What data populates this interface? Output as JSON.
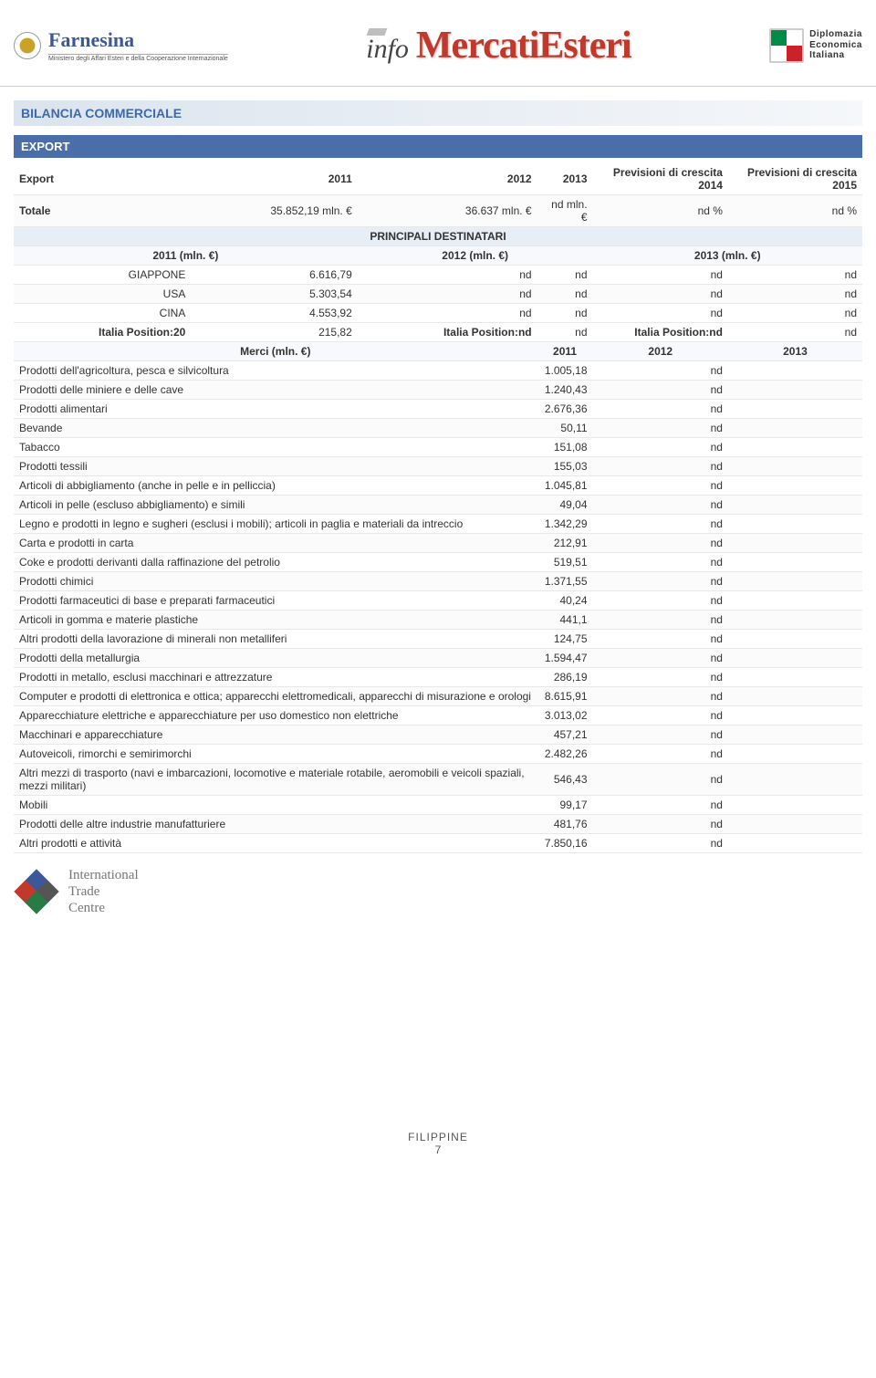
{
  "header": {
    "farnesina": "Farnesina",
    "farnesina_sub": "Ministero degli Affari Esteri e della Cooperazione Internazionale",
    "info": "info",
    "mercati": "MercatiEsteri",
    "dei_l1": "Diplomazia",
    "dei_l2": "Economica",
    "dei_l3": "Italiana"
  },
  "section_title": "BILANCIA COMMERCIALE",
  "sub_title": "EXPORT",
  "export_header": {
    "c0": "Export",
    "c1": "2011",
    "c2": "2012",
    "c3": "2013",
    "c4": "Previsioni di crescita 2014",
    "c5": "Previsioni di crescita 2015"
  },
  "export_row": {
    "c0": "Totale",
    "c1": "35.852,19 mln. €",
    "c2": "36.637 mln. €",
    "c3": "nd mln. €",
    "c4": "nd %",
    "c5": "nd %"
  },
  "dest_title": "PRINCIPALI DESTINATARI",
  "dest_cols": {
    "c0": "2011 (mln. €)",
    "c1": "2012 (mln. €)",
    "c2": "2013 (mln. €)"
  },
  "dest_rows": [
    {
      "name": "GIAPPONE",
      "v11": "6.616,79",
      "p12": "nd",
      "v12": "nd",
      "p13": "nd",
      "v13": "nd"
    },
    {
      "name": "USA",
      "v11": "5.303,54",
      "p12": "nd",
      "v12": "nd",
      "p13": "nd",
      "v13": "nd"
    },
    {
      "name": "CINA",
      "v11": "4.553,92",
      "p12": "nd",
      "v12": "nd",
      "p13": "nd",
      "v13": "nd"
    }
  ],
  "italia_row": {
    "p11": "Italia Position:20",
    "v11": "215,82",
    "p12": "Italia Position:nd",
    "v12": "nd",
    "p13": "Italia Position:nd",
    "v13": "nd"
  },
  "merci_header": {
    "label": "Merci (mln. €)",
    "c1": "2011",
    "c2": "2012",
    "c3": "2013"
  },
  "merci_rows": [
    {
      "name": "Prodotti dell'agricoltura, pesca e silvicoltura",
      "v11": "1.005,18",
      "v12": "nd",
      "v13": ""
    },
    {
      "name": "Prodotti delle miniere e delle cave",
      "v11": "1.240,43",
      "v12": "nd",
      "v13": ""
    },
    {
      "name": "Prodotti alimentari",
      "v11": "2.676,36",
      "v12": "nd",
      "v13": ""
    },
    {
      "name": "Bevande",
      "v11": "50,11",
      "v12": "nd",
      "v13": ""
    },
    {
      "name": "Tabacco",
      "v11": "151,08",
      "v12": "nd",
      "v13": ""
    },
    {
      "name": "Prodotti tessili",
      "v11": "155,03",
      "v12": "nd",
      "v13": ""
    },
    {
      "name": "Articoli di abbigliamento (anche in pelle e in pelliccia)",
      "v11": "1.045,81",
      "v12": "nd",
      "v13": ""
    },
    {
      "name": "Articoli in pelle (escluso abbigliamento) e simili",
      "v11": "49,04",
      "v12": "nd",
      "v13": ""
    },
    {
      "name": "Legno e prodotti in legno e sugheri (esclusi i mobili); articoli in paglia e materiali da intreccio",
      "v11": "1.342,29",
      "v12": "nd",
      "v13": ""
    },
    {
      "name": "Carta e prodotti in carta",
      "v11": "212,91",
      "v12": "nd",
      "v13": ""
    },
    {
      "name": "Coke e prodotti derivanti dalla raffinazione del petrolio",
      "v11": "519,51",
      "v12": "nd",
      "v13": ""
    },
    {
      "name": "Prodotti chimici",
      "v11": "1.371,55",
      "v12": "nd",
      "v13": ""
    },
    {
      "name": "Prodotti farmaceutici di base e preparati farmaceutici",
      "v11": "40,24",
      "v12": "nd",
      "v13": ""
    },
    {
      "name": "Articoli in gomma e materie plastiche",
      "v11": "441,1",
      "v12": "nd",
      "v13": ""
    },
    {
      "name": "Altri prodotti della lavorazione di minerali non metalliferi",
      "v11": "124,75",
      "v12": "nd",
      "v13": ""
    },
    {
      "name": "Prodotti della metallurgia",
      "v11": "1.594,47",
      "v12": "nd",
      "v13": ""
    },
    {
      "name": "Prodotti in metallo, esclusi macchinari e attrezzature",
      "v11": "286,19",
      "v12": "nd",
      "v13": ""
    },
    {
      "name": "Computer e prodotti di elettronica e ottica; apparecchi elettromedicali, apparecchi di misurazione e orologi",
      "v11": "8.615,91",
      "v12": "nd",
      "v13": ""
    },
    {
      "name": "Apparecchiature elettriche e apparecchiature per uso domestico non elettriche",
      "v11": "3.013,02",
      "v12": "nd",
      "v13": ""
    },
    {
      "name": "Macchinari e apparecchiature",
      "v11": "457,21",
      "v12": "nd",
      "v13": ""
    },
    {
      "name": "Autoveicoli, rimorchi e semirimorchi",
      "v11": "2.482,26",
      "v12": "nd",
      "v13": ""
    },
    {
      "name": "Altri mezzi di trasporto (navi e imbarcazioni, locomotive e materiale rotabile, aeromobili e veicoli spaziali, mezzi militari)",
      "v11": "546,43",
      "v12": "nd",
      "v13": ""
    },
    {
      "name": "Mobili",
      "v11": "99,17",
      "v12": "nd",
      "v13": ""
    },
    {
      "name": "Prodotti delle altre industrie manufatturiere",
      "v11": "481,76",
      "v12": "nd",
      "v13": ""
    },
    {
      "name": "Altri prodotti e attività",
      "v11": "7.850,16",
      "v12": "nd",
      "v13": ""
    }
  ],
  "itc": {
    "l1": "International",
    "l2": "Trade",
    "l3": "Centre"
  },
  "footer": {
    "country": "FILIPPINE",
    "page": "7"
  }
}
